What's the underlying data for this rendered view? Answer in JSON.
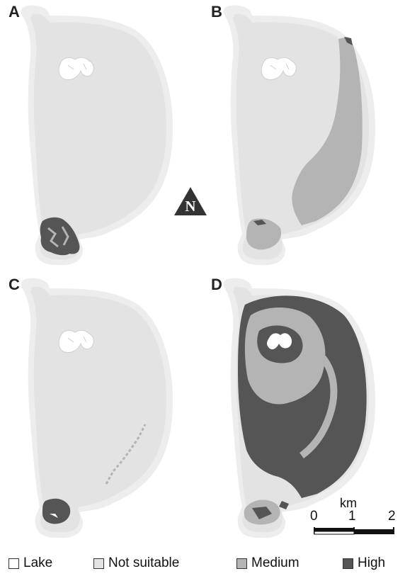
{
  "panels": [
    {
      "letter": "A",
      "suitability": "high-south-tip-only"
    },
    {
      "letter": "B",
      "suitability": "medium-east-coast"
    },
    {
      "letter": "C",
      "suitability": "high-south-tip-small"
    },
    {
      "letter": "D",
      "suitability": "high-and-medium-widespread"
    }
  ],
  "north_arrow": {
    "label": "N"
  },
  "scale_bar": {
    "unit": "km",
    "ticks": [
      "0",
      "1",
      "2"
    ]
  },
  "legend": [
    {
      "label": "Lake",
      "color": "#ffffff"
    },
    {
      "label": "Not suitable",
      "color": "#e3e3e3"
    },
    {
      "label": "Medium",
      "color": "#b4b4b4"
    },
    {
      "label": "High",
      "color": "#555555"
    }
  ],
  "colors": {
    "coast": "#ededed",
    "island": "#e3e3e3",
    "medium": "#b4b4b4",
    "high": "#555555",
    "lake": "#ffffff"
  }
}
